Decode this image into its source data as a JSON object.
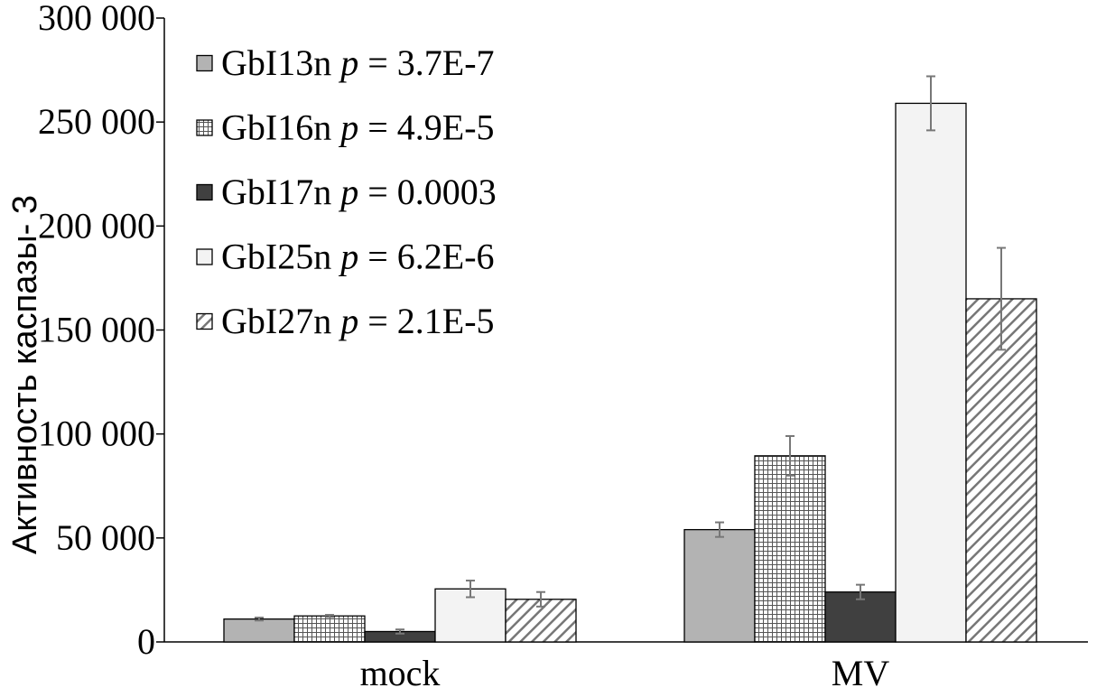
{
  "chart_data": {
    "type": "bar",
    "title": "",
    "xlabel": "",
    "ylabel": "Активность каспазы- 3",
    "ylim": [
      0,
      300000
    ],
    "yticks": [
      0,
      50000,
      100000,
      150000,
      200000,
      250000,
      300000
    ],
    "ytick_labels": [
      "0",
      "50 000",
      "100 000",
      "150 000",
      "200 000",
      "250 000",
      "300 000"
    ],
    "categories": [
      "mock",
      "MV"
    ],
    "legend_position": "top-left",
    "grid": false,
    "series": [
      {
        "name": "GbI13n",
        "p_label": "p",
        "p_value": "= 3.7E-7",
        "values": [
          11000,
          54000
        ],
        "errors": [
          700,
          3500
        ],
        "fill": "solid",
        "color": "#b3b3b3"
      },
      {
        "name": "GbI16n",
        "p_label": "p",
        "p_value": "= 4.9E-5",
        "values": [
          12500,
          89500
        ],
        "errors": [
          500,
          9500
        ],
        "fill": "grid",
        "color": "#ffffff"
      },
      {
        "name": "GbI17n",
        "p_label": "p",
        "p_value": "= 0.0003",
        "values": [
          5000,
          24000
        ],
        "errors": [
          1000,
          3500
        ],
        "fill": "solid",
        "color": "#404040"
      },
      {
        "name": "GbI25n",
        "p_label": "p",
        "p_value": "= 6.2E-6",
        "values": [
          25500,
          259000
        ],
        "errors": [
          4000,
          13000
        ],
        "fill": "solid",
        "color": "#f3f3f3"
      },
      {
        "name": "GbI27n",
        "p_label": "p",
        "p_value": "= 2.1E-5",
        "values": [
          20500,
          165000
        ],
        "errors": [
          3500,
          24500
        ],
        "fill": "hatch",
        "color": "#ffffff"
      }
    ]
  }
}
